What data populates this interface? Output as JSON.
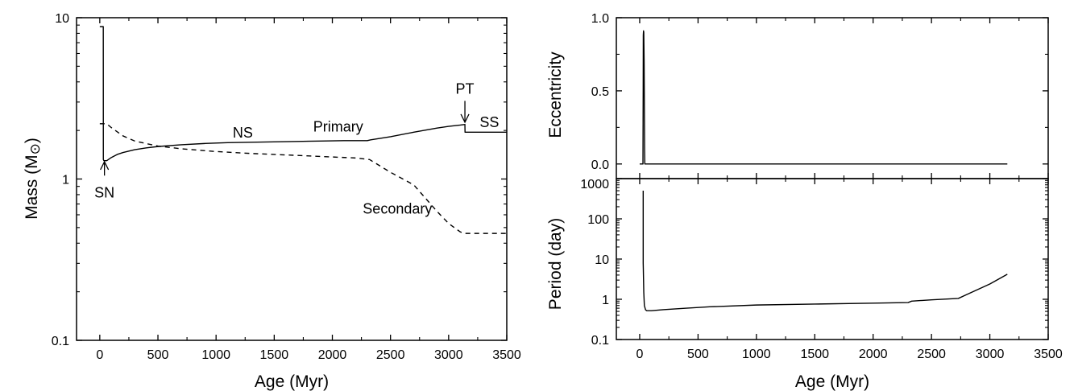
{
  "chart_data": [
    {
      "id": "mass",
      "type": "line",
      "xlabel": "Age (Myr)",
      "ylabel": "Mass (M",
      "ylabel_symbol": "⊙",
      "ylabel_close": ")",
      "xlim": [
        -200,
        3500
      ],
      "ylim": [
        0.1,
        10
      ],
      "yscale": "log",
      "x_ticks": [
        0,
        500,
        1000,
        1500,
        2000,
        2500,
        3000,
        3500
      ],
      "x_tick_labels": [
        "0",
        "500",
        "1000",
        "1500",
        "2000",
        "2500",
        "3000",
        "3500"
      ],
      "y_ticks": [
        0.1,
        1,
        10
      ],
      "y_tick_labels": [
        "0.1",
        "1",
        "10"
      ],
      "series": [
        {
          "style": "solid",
          "x": [
            0,
            30,
            30.5,
            35,
            60,
            100,
            150,
            200,
            300,
            400,
            500,
            700,
            900,
            1100,
            1300,
            1500,
            1700,
            1900,
            2100,
            2300,
            2330,
            2500,
            2700,
            2900,
            3000,
            3100,
            3140,
            3141,
            3300,
            3500
          ],
          "y": [
            8.8,
            8.8,
            1.32,
            1.3,
            1.3,
            1.36,
            1.42,
            1.46,
            1.52,
            1.56,
            1.59,
            1.63,
            1.66,
            1.68,
            1.69,
            1.7,
            1.71,
            1.72,
            1.73,
            1.73,
            1.75,
            1.83,
            1.95,
            2.07,
            2.12,
            2.16,
            2.18,
            1.95,
            1.95,
            1.95
          ]
        },
        {
          "style": "dashed",
          "x": [
            0,
            60,
            100,
            200,
            300,
            500,
            700,
            1000,
            1300,
            1600,
            1900,
            2200,
            2320,
            2500,
            2700,
            2900,
            3000,
            3100,
            3140,
            3500
          ],
          "y": [
            2.2,
            2.2,
            2.08,
            1.85,
            1.72,
            1.6,
            1.54,
            1.48,
            1.44,
            1.41,
            1.38,
            1.35,
            1.32,
            1.1,
            0.92,
            0.63,
            0.53,
            0.47,
            0.46,
            0.46
          ]
        }
      ],
      "annotations": [
        {
          "text": "NS",
          "x": 1230,
          "y": 1.81
        },
        {
          "text": "Primary",
          "x": 2050,
          "y": 1.97
        },
        {
          "text": "Secondary",
          "x": 2560,
          "y": 0.61
        },
        {
          "text": "SS",
          "x": 3350,
          "y": 2.1
        },
        {
          "text": "SN",
          "x": 40,
          "y": 0.77
        },
        {
          "text": "PT",
          "x": 3140,
          "y": 3.38
        }
      ],
      "arrows": [
        {
          "label": "SN",
          "x": 40,
          "y_from": 1.05,
          "y_to": 1.28
        },
        {
          "label": "PT",
          "x": 3140,
          "y_from": 3.05,
          "y_to": 2.25
        }
      ]
    },
    {
      "id": "eccentricity",
      "type": "line",
      "xlabel": "",
      "ylabel": "Eccentricity",
      "xlim": [
        -200,
        3500
      ],
      "ylim": [
        -0.1,
        1.0
      ],
      "y_ticks": [
        0.0,
        0.5,
        1.0
      ],
      "y_tick_labels": [
        "0.0",
        "0.5",
        "1.0"
      ],
      "x_ticks": [
        0,
        500,
        1000,
        1500,
        2000,
        2500,
        3000,
        3500
      ],
      "series": [
        {
          "style": "solid",
          "x": [
            0,
            28,
            30,
            31,
            33,
            35,
            38,
            40,
            42,
            44,
            50,
            3150
          ],
          "y": [
            0.0,
            0.0,
            0.5,
            0.88,
            0.91,
            0.9,
            0.7,
            0.4,
            0.1,
            0.0,
            0.0,
            0.0
          ]
        }
      ]
    },
    {
      "id": "period",
      "type": "line",
      "xlabel": "Age (Myr)",
      "ylabel": "Period (day)",
      "xlim": [
        -200,
        3500
      ],
      "ylim": [
        0.1,
        1000
      ],
      "yscale": "log",
      "x_ticks": [
        0,
        500,
        1000,
        1500,
        2000,
        2500,
        3000,
        3500
      ],
      "x_tick_labels": [
        "0",
        "500",
        "1000",
        "1500",
        "2000",
        "2500",
        "3000",
        "3500"
      ],
      "y_ticks": [
        0.1,
        1,
        10,
        100,
        1000
      ],
      "y_tick_labels": [
        "0.1",
        "1",
        "10",
        "100",
        "1000"
      ],
      "series": [
        {
          "style": "solid",
          "x": [
            30,
            30,
            31,
            33,
            35,
            40,
            50,
            60,
            100,
            200,
            400,
            600,
            1000,
            1500,
            2000,
            2300,
            2330,
            2500,
            2730,
            2800,
            3000,
            3150
          ],
          "y": [
            500,
            8,
            6,
            3,
            1.5,
            0.7,
            0.55,
            0.52,
            0.52,
            0.55,
            0.6,
            0.65,
            0.72,
            0.76,
            0.8,
            0.83,
            0.9,
            0.97,
            1.05,
            1.3,
            2.4,
            4.2
          ]
        }
      ]
    }
  ]
}
